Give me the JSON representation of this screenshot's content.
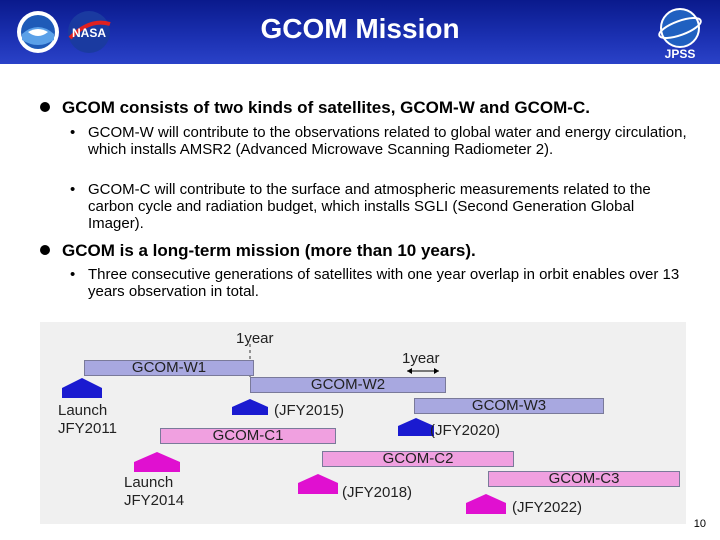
{
  "header": {
    "title": "GCOM Mission",
    "logos": [
      "noaa-logo",
      "nasa-logo",
      "jpss-logo"
    ],
    "jpss_text": "JPSS",
    "nasa_text": "NASA"
  },
  "bullets": [
    {
      "text": "GCOM consists of two kinds of satellites, GCOM-W and GCOM-C.",
      "sub": [
        "GCOM-W will contribute to the observations related to global water and energy circulation, which installs AMSR2 (Advanced Microwave Scanning Radiometer 2).",
        "GCOM-C will contribute to the surface and atmospheric measurements related to the carbon cycle and radiation budget, which installs SGLI (Second Generation Global Imager)."
      ]
    },
    {
      "text": "GCOM is a long-term mission (more than 10 years).",
      "sub": [
        "Three consecutive generations of satellites with one year overlap in orbit enables over 13 years observation in total."
      ]
    }
  ],
  "timeline": {
    "overlap1": "1year",
    "overlap2": "1year",
    "bars": {
      "w1": "GCOM-W1",
      "w2": "GCOM-W2",
      "w3": "GCOM-W3",
      "c1": "GCOM-C1",
      "c2": "GCOM-C2",
      "c3": "GCOM-C3"
    },
    "launches": {
      "w1_line1": "Launch",
      "w1_line2": "JFY2011",
      "c1_line1": "Launch",
      "c1_line2": "JFY2014",
      "w2": "(JFY2015)",
      "w3": "(JFY2020)",
      "c2": "(JFY2018)",
      "c3": "(JFY2022)"
    },
    "colors": {
      "w": "#a8a8e0",
      "c": "#f0a0e0",
      "w_arrow": "#1a1ad0",
      "c_arrow": "#e010d0"
    }
  },
  "page_number": "10"
}
